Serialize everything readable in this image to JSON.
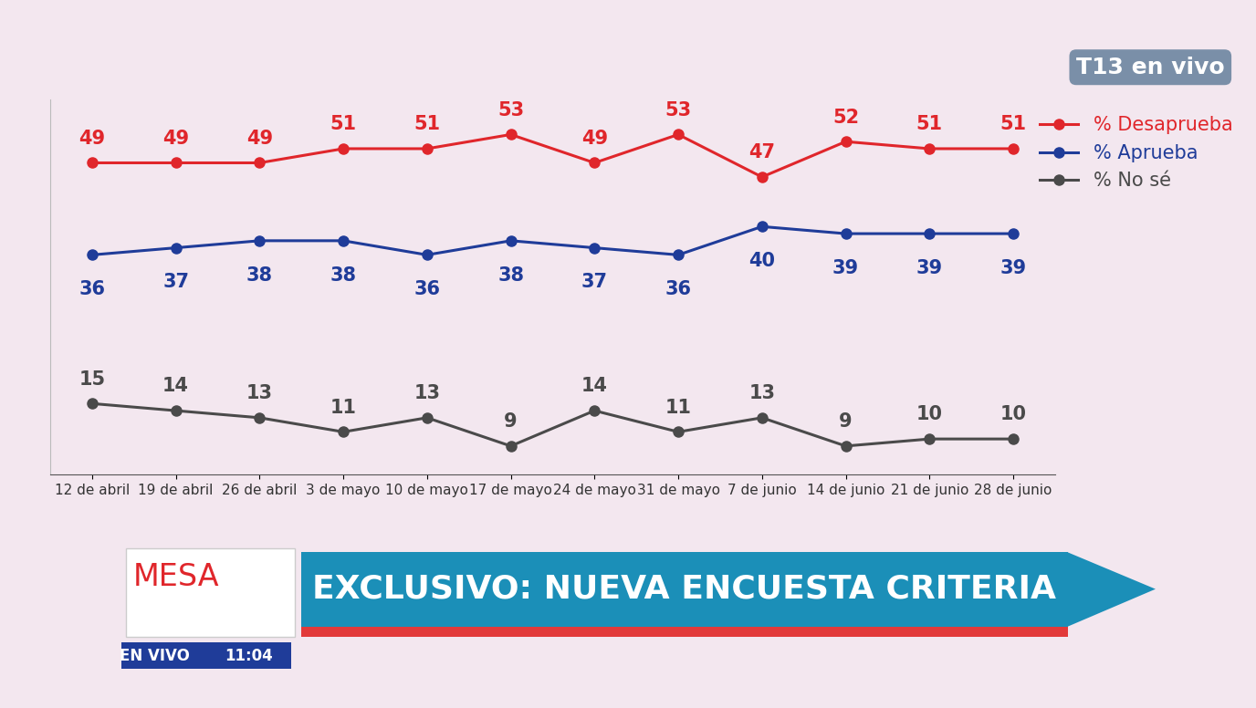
{
  "chart_data": {
    "type": "line",
    "categories": [
      "12 de abril",
      "19 de abril",
      "26 de abril",
      "3 de mayo",
      "10 de mayo",
      "17 de mayo",
      "24 de mayo",
      "31 de mayo",
      "7 de junio",
      "14 de junio",
      "21 de junio",
      "28 de junio"
    ],
    "series": [
      {
        "name": "% Desaprueba",
        "color": "#e0262b",
        "marker": "o",
        "line_style": "solid",
        "values": [
          49,
          49,
          49,
          51,
          51,
          53,
          49,
          53,
          47,
          52,
          51,
          51
        ]
      },
      {
        "name": "% Aprueba",
        "color": "#1f3c99",
        "marker": "o",
        "line_style": "solid",
        "values": [
          36,
          37,
          38,
          38,
          36,
          38,
          37,
          36,
          40,
          39,
          39,
          39
        ]
      },
      {
        "name": "% No sé",
        "color": "#4a4a4a",
        "marker": "o",
        "line_style": "solid",
        "values": [
          15,
          14,
          13,
          11,
          13,
          9,
          14,
          11,
          13,
          9,
          10,
          10
        ]
      }
    ],
    "ylim": [
      5,
      58
    ],
    "tick_labels": "x",
    "data_labels": true,
    "grid": false,
    "legend": "upper right"
  },
  "broadcast": {
    "channel": "T13 en vivo",
    "program": "MESA",
    "live": "EN VIVO",
    "time": "11:04",
    "headline": "EXCLUSIVO: NUEVA ENCUESTA CRITERIA"
  }
}
